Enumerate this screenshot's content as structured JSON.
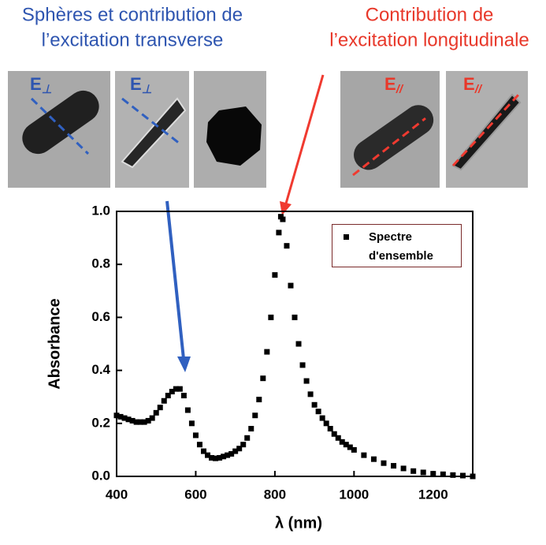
{
  "chart_data": {
    "type": "scatter",
    "annotations": [
      {
        "lines": [
          "Sphères et contribution de",
          "l’excitation transverse"
        ],
        "color": "#2e55b0"
      },
      {
        "lines": [
          "Contribution de",
          "l’excitation longitudinale"
        ],
        "color": "#e8382a"
      }
    ],
    "image_labels": [
      {
        "base": "E",
        "sub": "⊥",
        "color": "#2e55b0"
      },
      {
        "base": "E",
        "sub": "⊥",
        "color": "#2e55b0"
      },
      {
        "base": "E",
        "sub": "//",
        "color": "#e8382a"
      },
      {
        "base": "E",
        "sub": "//",
        "color": "#e8382a"
      }
    ],
    "x_label": "λ (nm)",
    "y_label": "Absorbance",
    "xlim": [
      400,
      1300
    ],
    "xticks": [
      400,
      600,
      800,
      1000,
      1200
    ],
    "ylim": [
      0,
      1
    ],
    "yticks": [
      {
        "value": 0,
        "label": "0.0"
      },
      0.2,
      0.4,
      0.6,
      0.8,
      {
        "value": 1,
        "label": "1.0"
      }
    ],
    "legend": "upper right",
    "series": [
      {
        "name": "Spectre d'ensemble",
        "color": "#000000",
        "marker": "square",
        "x": [
          400,
          410,
          420,
          430,
          440,
          450,
          460,
          470,
          480,
          490,
          500,
          510,
          520,
          530,
          540,
          550,
          560,
          570,
          580,
          590,
          600,
          610,
          620,
          630,
          640,
          650,
          660,
          670,
          680,
          690,
          700,
          710,
          720,
          730,
          740,
          750,
          760,
          770,
          780,
          790,
          800,
          810,
          815,
          820,
          830,
          840,
          850,
          860,
          870,
          880,
          890,
          900,
          910,
          920,
          930,
          940,
          950,
          960,
          970,
          980,
          990,
          1000,
          1025,
          1050,
          1075,
          1100,
          1125,
          1150,
          1175,
          1200,
          1225,
          1250,
          1275,
          1300
        ],
        "values": [
          0.23,
          0.225,
          0.22,
          0.215,
          0.21,
          0.205,
          0.205,
          0.205,
          0.21,
          0.22,
          0.24,
          0.26,
          0.285,
          0.305,
          0.32,
          0.33,
          0.33,
          0.305,
          0.25,
          0.2,
          0.155,
          0.12,
          0.095,
          0.08,
          0.07,
          0.068,
          0.07,
          0.075,
          0.08,
          0.085,
          0.095,
          0.105,
          0.12,
          0.145,
          0.18,
          0.23,
          0.29,
          0.37,
          0.47,
          0.6,
          0.76,
          0.92,
          0.98,
          0.97,
          0.87,
          0.72,
          0.6,
          0.5,
          0.42,
          0.36,
          0.31,
          0.27,
          0.245,
          0.22,
          0.2,
          0.18,
          0.16,
          0.145,
          0.13,
          0.12,
          0.11,
          0.1,
          0.08,
          0.065,
          0.05,
          0.04,
          0.03,
          0.02,
          0.015,
          0.01,
          0.008,
          0.005,
          0.003,
          0
        ]
      }
    ]
  }
}
